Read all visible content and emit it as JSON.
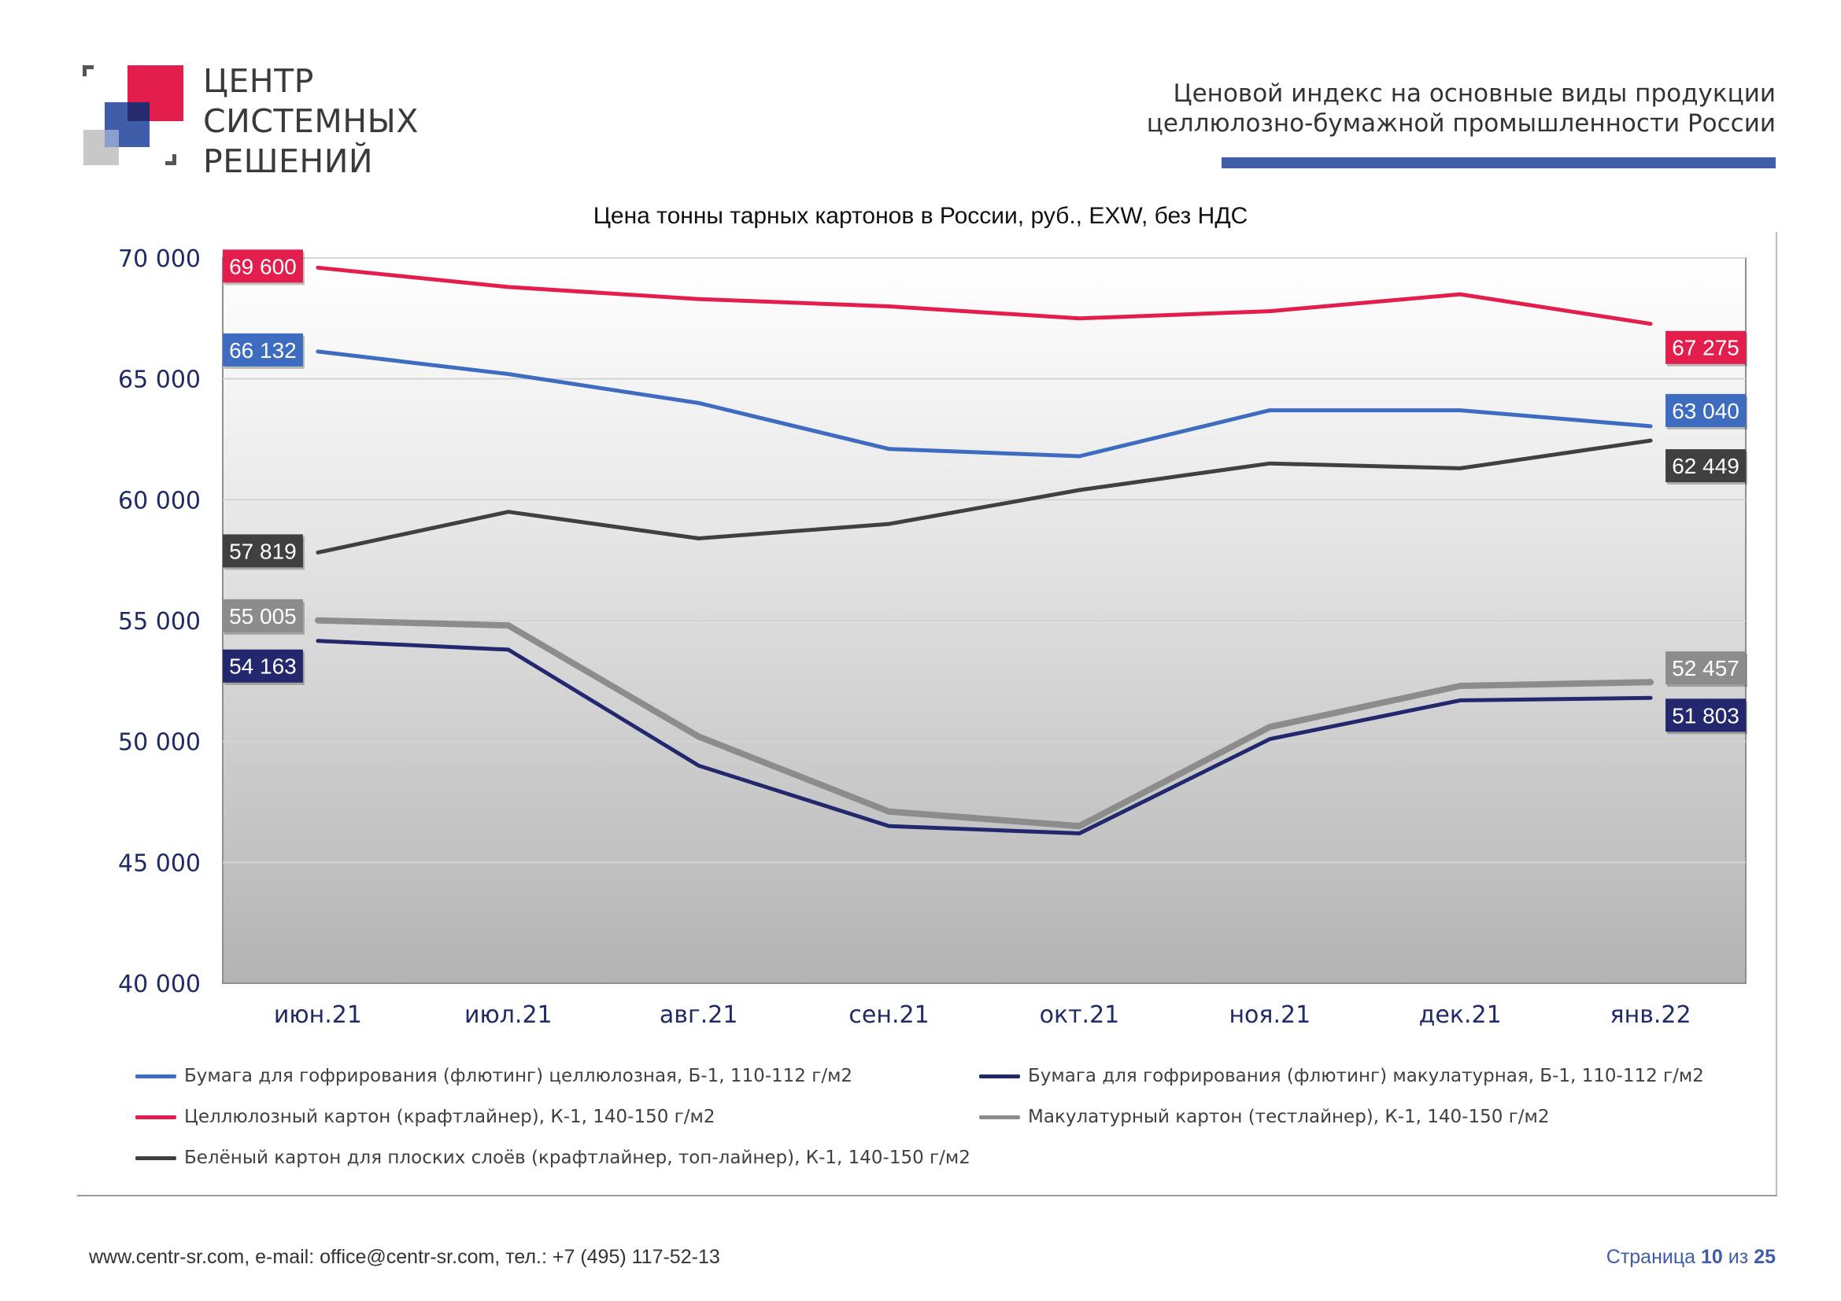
{
  "header": {
    "logo_lines": [
      "ЦЕНТР",
      "СИСТЕМНЫХ",
      "РЕШЕНИЙ"
    ],
    "report_title_lines": [
      "Ценовой  индекс  на  основные виды продукции",
      "целлюлозно-бумажной промышленности России"
    ]
  },
  "colors": {
    "accent_blue": "#3f5da8",
    "brand_red": "#e31e4c"
  },
  "chart_data": {
    "type": "line",
    "title": "Цена тонны тарных картонов в России, руб., EXW, без НДС",
    "categories": [
      "июн.21",
      "июл.21",
      "авг.21",
      "сен.21",
      "окт.21",
      "ноя.21",
      "дек.21",
      "янв.22"
    ],
    "ylim": [
      40000,
      70000
    ],
    "yticks": [
      40000,
      45000,
      50000,
      55000,
      60000,
      65000,
      70000
    ],
    "ytick_labels": [
      "40 000",
      "45 000",
      "50 000",
      "55 000",
      "60 000",
      "65 000",
      "70 000"
    ],
    "grid": true,
    "legend_position": "bottom",
    "series": [
      {
        "name": "Целлюлозный картон (крафтлайнер), К-1, 140-150 г/м2",
        "color": "#e31e4c",
        "values": [
          69600,
          68800,
          68300,
          68000,
          67500,
          67800,
          68500,
          67275
        ],
        "start_label": "69 600",
        "end_label": "67 275"
      },
      {
        "name": "Бумага для гофрирования (флютинг) целлюлозная, Б-1, 110-112 г/м2",
        "color": "#3d6cc0",
        "values": [
          66132,
          65200,
          64000,
          62100,
          61800,
          63700,
          63700,
          63040
        ],
        "start_label": "66 132",
        "end_label": "63 040"
      },
      {
        "name": "Белёный картон для плоских слоёв (крафтлайнер, топ-лайнер), К-1, 140-150 г/м2",
        "color": "#404040",
        "values": [
          57819,
          59500,
          58400,
          59000,
          60400,
          61500,
          61300,
          62449
        ],
        "start_label": "57 819",
        "end_label": "62 449"
      },
      {
        "name": "Макулатурный картон (тестлайнер), К-1, 140-150 г/м2",
        "color": "#8c8c8c",
        "values": [
          55005,
          54800,
          50200,
          47100,
          46500,
          50600,
          52300,
          52457
        ],
        "start_label": "55 005",
        "end_label": "52 457"
      },
      {
        "name": "Бумага для гофрирования (флютинг) макулатурная, Б-1, 110-112 г/м2",
        "color": "#23286e",
        "values": [
          54163,
          53800,
          49000,
          46500,
          46200,
          50100,
          51700,
          51803
        ],
        "start_label": "54 163",
        "end_label": "51 803"
      }
    ]
  },
  "legend_items": [
    {
      "label": "Бумага для гофрирования (флютинг) целлюлозная, Б-1, 110-112 г/м2",
      "color": "#3d6cc0"
    },
    {
      "label": "Бумага для гофрирования (флютинг) макулатурная, Б-1, 110-112 г/м2",
      "color": "#23286e"
    },
    {
      "label": "Целлюлозный картон (крафтлайнер), К-1, 140-150 г/м2",
      "color": "#e31e4c"
    },
    {
      "label": "Макулатурный картон (тестлайнер), К-1, 140-150 г/м2",
      "color": "#8c8c8c"
    },
    {
      "label": "Белёный картон для плоских слоёв (крафтлайнер, топ-лайнер), К-1, 140-150 г/м2",
      "color": "#404040"
    }
  ],
  "footer": {
    "contacts": "www.centr-sr.com, e-mail: office@centr-sr.com, тел.: +7 (495) 117-52-13",
    "page_word": "Страница",
    "page_current": "10",
    "page_of": "из",
    "page_total": "25"
  }
}
